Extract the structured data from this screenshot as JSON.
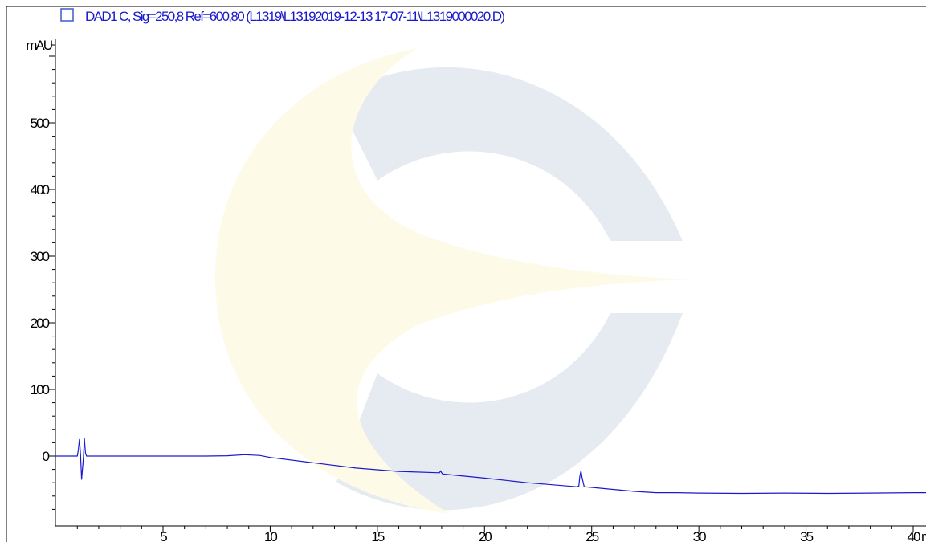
{
  "colors": {
    "trace": "#1a1acc",
    "axis": "#000000",
    "legend_text": "#1a1acc",
    "legend_box": "#3a5cc8",
    "watermark_gray": "#e6ebf2",
    "watermark_yellow": "#fdfbe8"
  },
  "legend": {
    "label": "DAD1 C, Sig=250,8 Ref=600,80 (L1319\\L13192019-12-13 17-07-11\\L1319000020.D)"
  },
  "watermark": {
    "icon": "logo-watermark"
  },
  "chart_data": {
    "type": "line",
    "title": "",
    "xlabel": "min",
    "ylabel": "mAU",
    "xlim": [
      0,
      41
    ],
    "ylim": [
      -85,
      620
    ],
    "grid": false,
    "x_ticks": [
      5,
      10,
      15,
      20,
      25,
      30,
      35,
      40
    ],
    "x_tick_labels": [
      "5",
      "10",
      "15",
      "20",
      "25",
      "30",
      "35",
      "40"
    ],
    "x_unit_label": "min",
    "y_ticks": [
      0,
      100,
      200,
      300,
      400,
      500
    ],
    "y_tick_labels": [
      "0",
      "100",
      "200",
      "300",
      "400",
      "500"
    ],
    "y_unit_label": "mAU",
    "series": [
      {
        "x": [
          0,
          1.0,
          1.05,
          1.1,
          1.15,
          1.2,
          1.28,
          1.33,
          1.38,
          1.43,
          1.5,
          2,
          4,
          6,
          7,
          8,
          8.8,
          9.5,
          10,
          12,
          14,
          16,
          17.9,
          17.95,
          18.0,
          18.05,
          20,
          22,
          24.3,
          24.4,
          24.45,
          24.5,
          24.55,
          24.65,
          25,
          26,
          27,
          28,
          29,
          30,
          32,
          34,
          36,
          38,
          40,
          41
        ],
        "y": [
          0,
          0,
          10,
          25,
          2,
          -35,
          -5,
          26,
          5,
          0,
          0,
          0,
          0,
          0,
          0,
          0.5,
          2,
          1,
          -2,
          -10,
          -18,
          -23,
          -25,
          -22,
          -25,
          -27,
          -33,
          -40,
          -46,
          -45,
          -30,
          -22,
          -32,
          -46,
          -47,
          -50,
          -53,
          -55,
          -55,
          -55.5,
          -56,
          -55.5,
          -56,
          -55.5,
          -55,
          -55
        ]
      }
    ]
  }
}
